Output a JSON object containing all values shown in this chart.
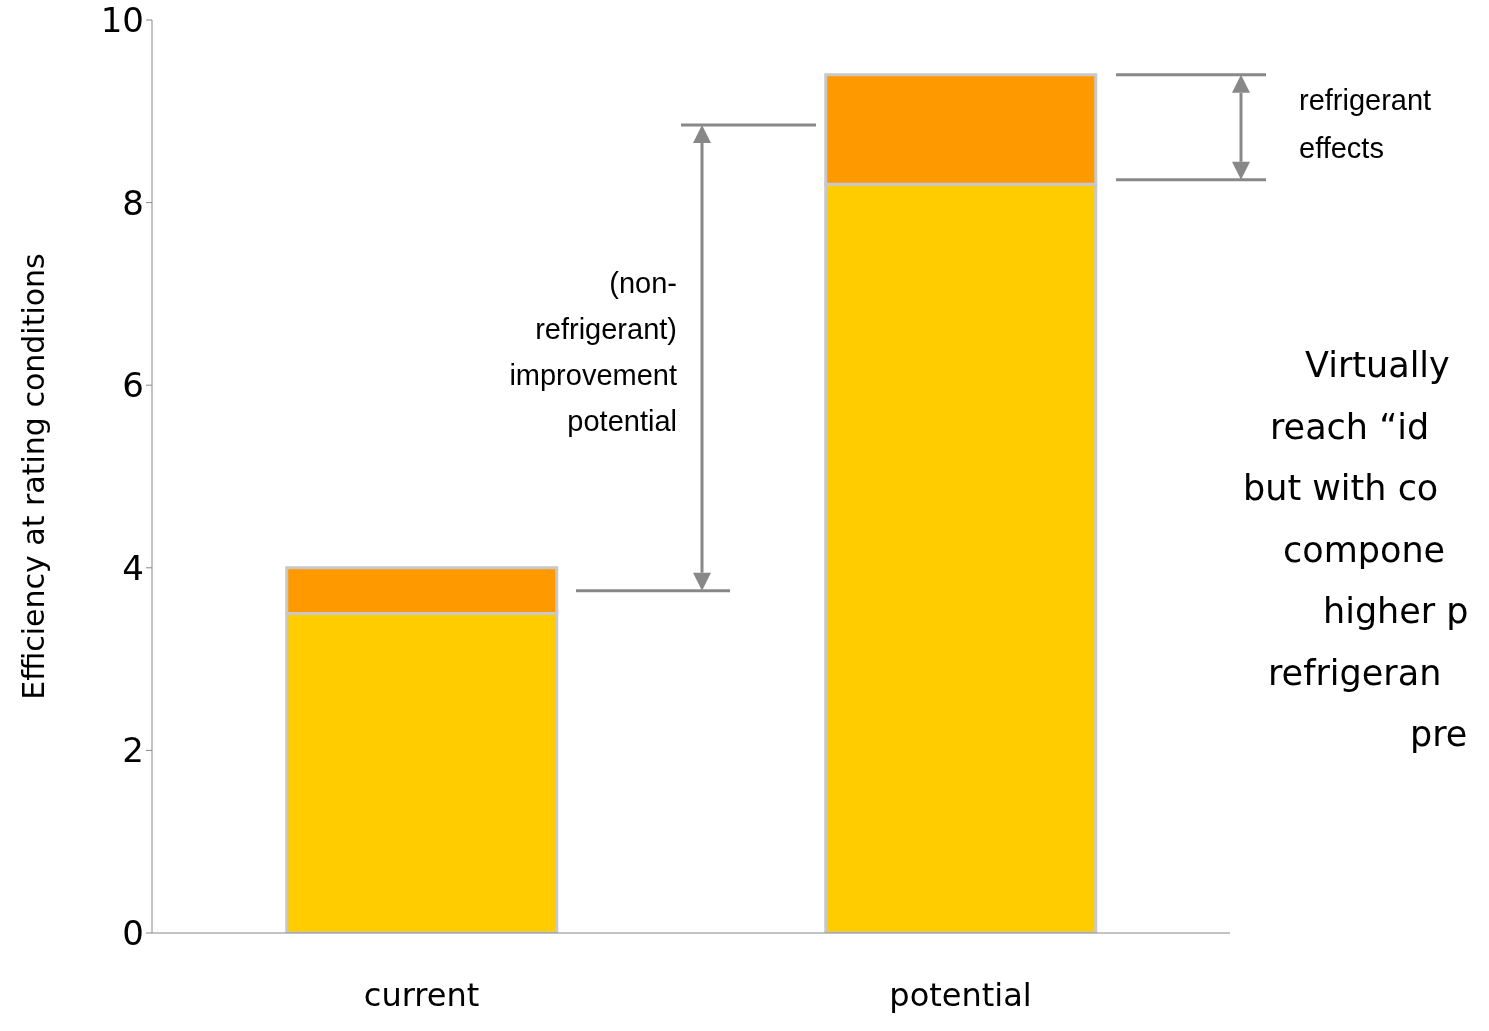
{
  "chart_data": {
    "type": "bar",
    "stacked": true,
    "ylabel": "Efficiency at rating conditions",
    "categories": [
      "current",
      "potential"
    ],
    "series": [
      {
        "color": "#ffcc00",
        "values": [
          3.5,
          8.2
        ]
      },
      {
        "color": "#ff9900",
        "values": [
          0.5,
          1.2
        ]
      }
    ],
    "ylim": [
      0,
      10
    ],
    "yticks": [
      0,
      2,
      4,
      6,
      8,
      10
    ],
    "annotations": [
      "(non-\nrefrigerant)\nimprovement\npotential",
      "refrigerant\neffects",
      "Virtually\nreach “id\nbut with co\ncompone\nhigher p\nrefrigeran\npre"
    ]
  }
}
